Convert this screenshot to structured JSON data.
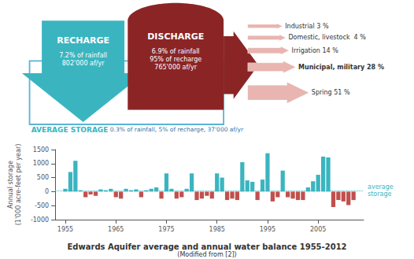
{
  "chart_data": {
    "type": "bar",
    "title": "Edwards Aquifer average and annual water balance 1955-2012",
    "subtitle": "(Modified from [2])",
    "ylabel": "Annual storage\n(1'000 acre-feet per year)",
    "x": [
      1955,
      1956,
      1957,
      1958,
      1959,
      1960,
      1961,
      1962,
      1963,
      1964,
      1965,
      1966,
      1967,
      1968,
      1969,
      1970,
      1971,
      1972,
      1973,
      1974,
      1975,
      1976,
      1977,
      1978,
      1979,
      1980,
      1981,
      1982,
      1983,
      1984,
      1985,
      1986,
      1987,
      1988,
      1989,
      1990,
      1991,
      1992,
      1993,
      1994,
      1995,
      1996,
      1997,
      1998,
      1999,
      2000,
      2001,
      2002,
      2003,
      2004,
      2005,
      2006,
      2007,
      2008,
      2009,
      2010,
      2011,
      2012
    ],
    "values": [
      100,
      700,
      1100,
      50,
      -200,
      -100,
      -150,
      80,
      50,
      100,
      -200,
      -250,
      100,
      50,
      80,
      -200,
      50,
      100,
      150,
      -250,
      650,
      100,
      -250,
      -200,
      100,
      650,
      -300,
      -250,
      -150,
      -250,
      650,
      500,
      -300,
      -250,
      -300,
      1050,
      400,
      350,
      -300,
      430,
      1370,
      -350,
      -200,
      750,
      -200,
      -250,
      -300,
      -300,
      150,
      370,
      600,
      1250,
      1220,
      -550,
      -300,
      -350,
      -480,
      -300
    ],
    "colors": [
      "#3ab5c0",
      "#3ab5c0",
      "#3ab5c0",
      "#3ab5c0",
      "#c0504d",
      "#c0504d",
      "#c0504d",
      "#3ab5c0",
      "#3ab5c0",
      "#3ab5c0",
      "#c0504d",
      "#c0504d",
      "#3ab5c0",
      "#3ab5c0",
      "#3ab5c0",
      "#c0504d",
      "#3ab5c0",
      "#3ab5c0",
      "#3ab5c0",
      "#c0504d",
      "#3ab5c0",
      "#3ab5c0",
      "#c0504d",
      "#c0504d",
      "#3ab5c0",
      "#3ab5c0",
      "#c0504d",
      "#c0504d",
      "#c0504d",
      "#c0504d",
      "#3ab5c0",
      "#3ab5c0",
      "#c0504d",
      "#c0504d",
      "#c0504d",
      "#3ab5c0",
      "#3ab5c0",
      "#3ab5c0",
      "#c0504d",
      "#3ab5c0",
      "#3ab5c0",
      "#c0504d",
      "#c0504d",
      "#3ab5c0",
      "#c0504d",
      "#c0504d",
      "#c0504d",
      "#c0504d",
      "#3ab5c0",
      "#3ab5c0",
      "#3ab5c0",
      "#3ab5c0",
      "#3ab5c0",
      "#c0504d",
      "#c0504d",
      "#c0504d",
      "#c0504d",
      "#c0504d"
    ],
    "xlim": [
      1953,
      2014
    ],
    "xticks": [
      1955,
      1965,
      1975,
      1985,
      1995,
      2005
    ],
    "ylim": [
      -1000,
      1500
    ],
    "yticks": [
      -1000,
      -500,
      0,
      500,
      1000,
      1500
    ],
    "grid": false,
    "annotations": [
      {
        "text": "average\nstorage",
        "y": 37,
        "color": "#3ab5c0",
        "line_style": "dotted"
      }
    ],
    "diagram": {
      "recharge": {
        "title": "RECHARGE",
        "text": "7.2% of rainfall\n802'000 af/yr",
        "color": "#3ab5c0"
      },
      "discharge": {
        "title": "DISCHARGE",
        "text": "6.9% of rainfall\n95% of recharge\n765'000 af/yr",
        "color": "#8b2525"
      },
      "discharge_uses": {
        "color": "#e8b5b0",
        "labels": [
          "Industrial 3 %",
          "Domestic, livestock  4 %",
          "Irrigation 14 %",
          "Municipal, military 28 %",
          "Spring 51 %"
        ]
      },
      "storage": {
        "title": "AVERAGE STORAGE",
        "title_color": "#3ab5c0",
        "text": " 0.3% of rainfall, 5% of recharge, 37'000 af/yr",
        "text_color": "#3377aa",
        "box_color": "#5ab4d6"
      }
    }
  }
}
